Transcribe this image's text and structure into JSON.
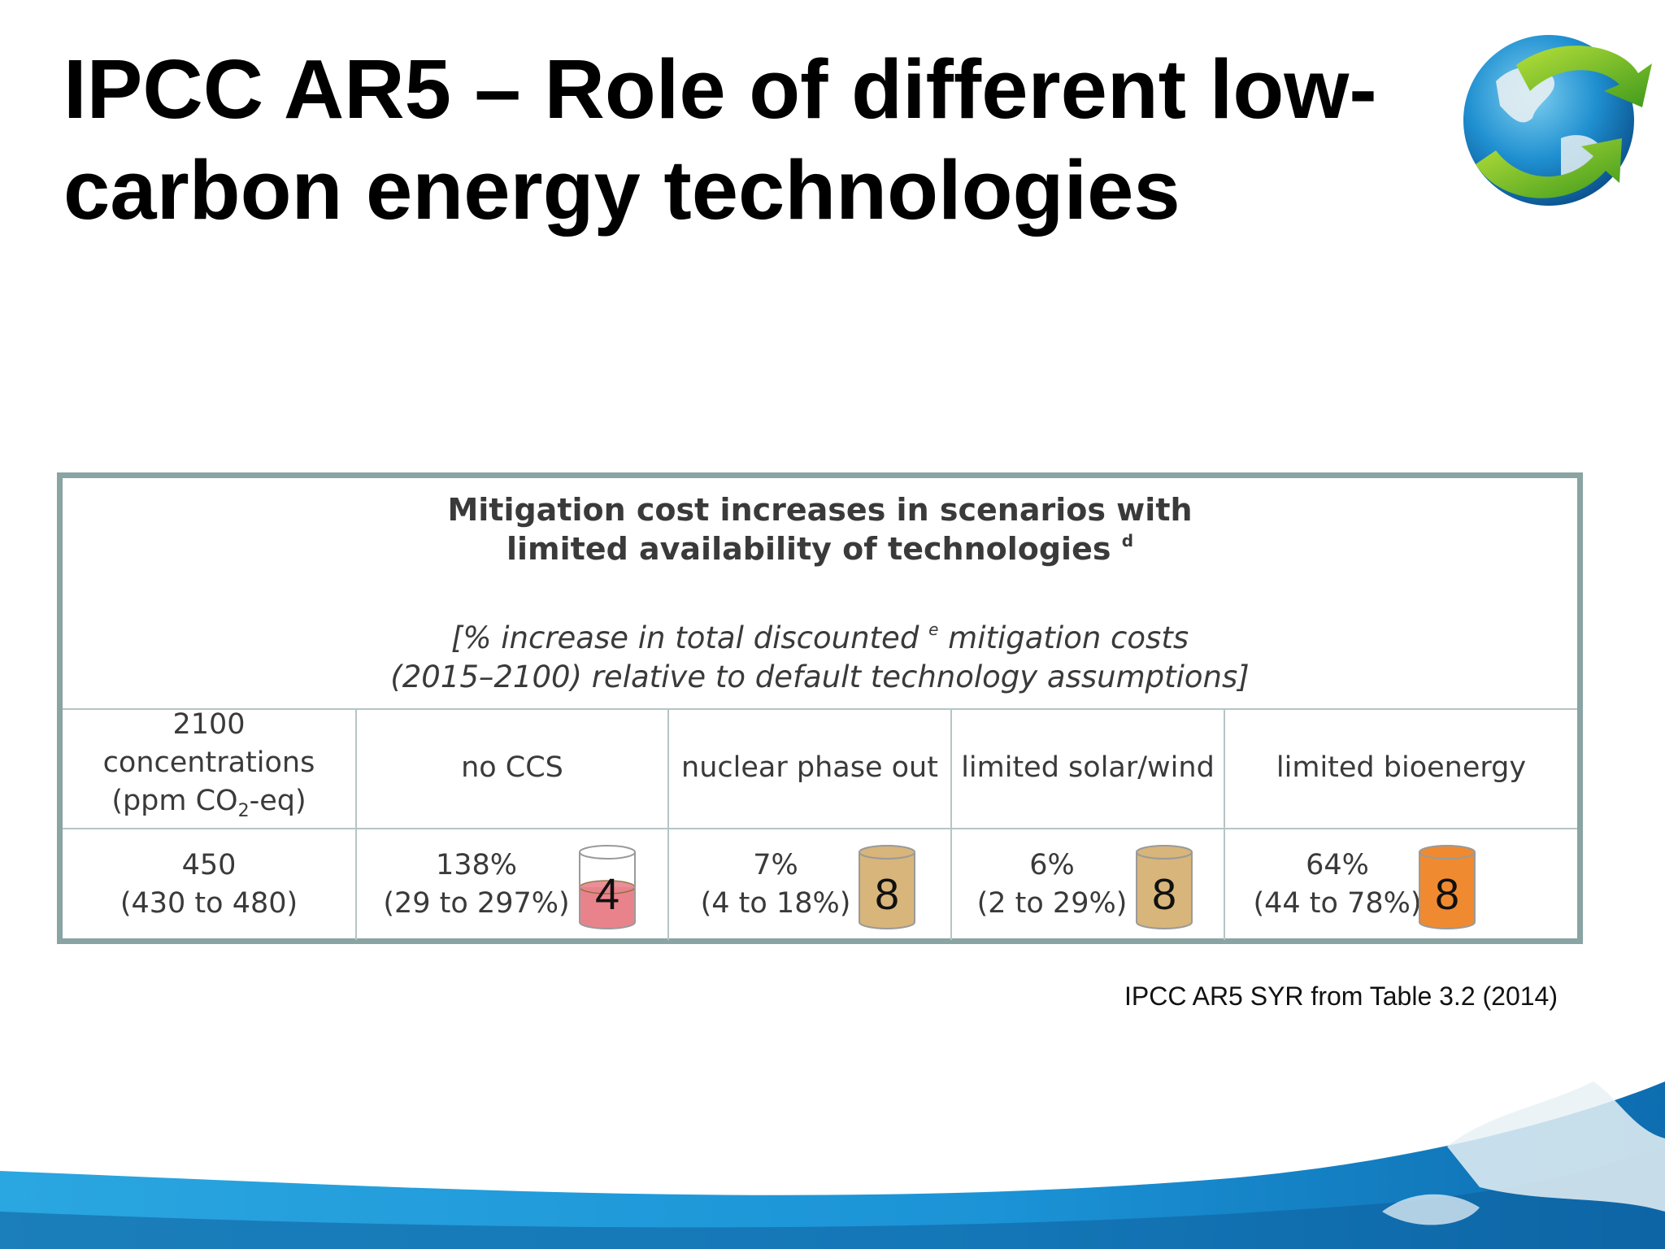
{
  "slide": {
    "title_line1": "IPCC AR5 – Role of different low-",
    "title_line2": "carbon energy technologies",
    "source": "IPCC AR5 SYR from Table 3.2 (2014)",
    "logo_icon": "globe-arrow-icon"
  },
  "table": {
    "title_line1": "Mitigation cost increases in scenarios with",
    "title_line2": "limited availability of technologies",
    "title_note": "d",
    "subtitle_line1_a": "[% increase in total discounted",
    "subtitle_note": "e",
    "subtitle_line1_b": " mitigation costs",
    "subtitle_line2": "(2015–2100) relative to default technology assumptions]",
    "concentration_header": {
      "line1": "2100",
      "line2": "concentrations",
      "line3_a": "(ppm CO",
      "line3_sub": "2",
      "line3_b": "-eq)"
    },
    "columns": [
      "no CCS",
      "nuclear phase out",
      "limited solar/wind",
      "limited bioenergy"
    ],
    "row": {
      "concentration": "450",
      "concentration_range": "(430 to 480)",
      "cells": [
        {
          "value": "138%",
          "range": "(29 to 297%)",
          "count": "4",
          "fill": 0.5,
          "color": "#e8838c"
        },
        {
          "value": "7%",
          "range": "(4 to 18%)",
          "count": "8",
          "fill": 1.0,
          "color": "#d8b57a"
        },
        {
          "value": "6%",
          "range": "(2 to 29%)",
          "count": "8",
          "fill": 1.0,
          "color": "#d8b57a"
        },
        {
          "value": "64%",
          "range": "(44 to 78%)",
          "count": "8",
          "fill": 1.0,
          "color": "#f08a30"
        }
      ]
    }
  }
}
